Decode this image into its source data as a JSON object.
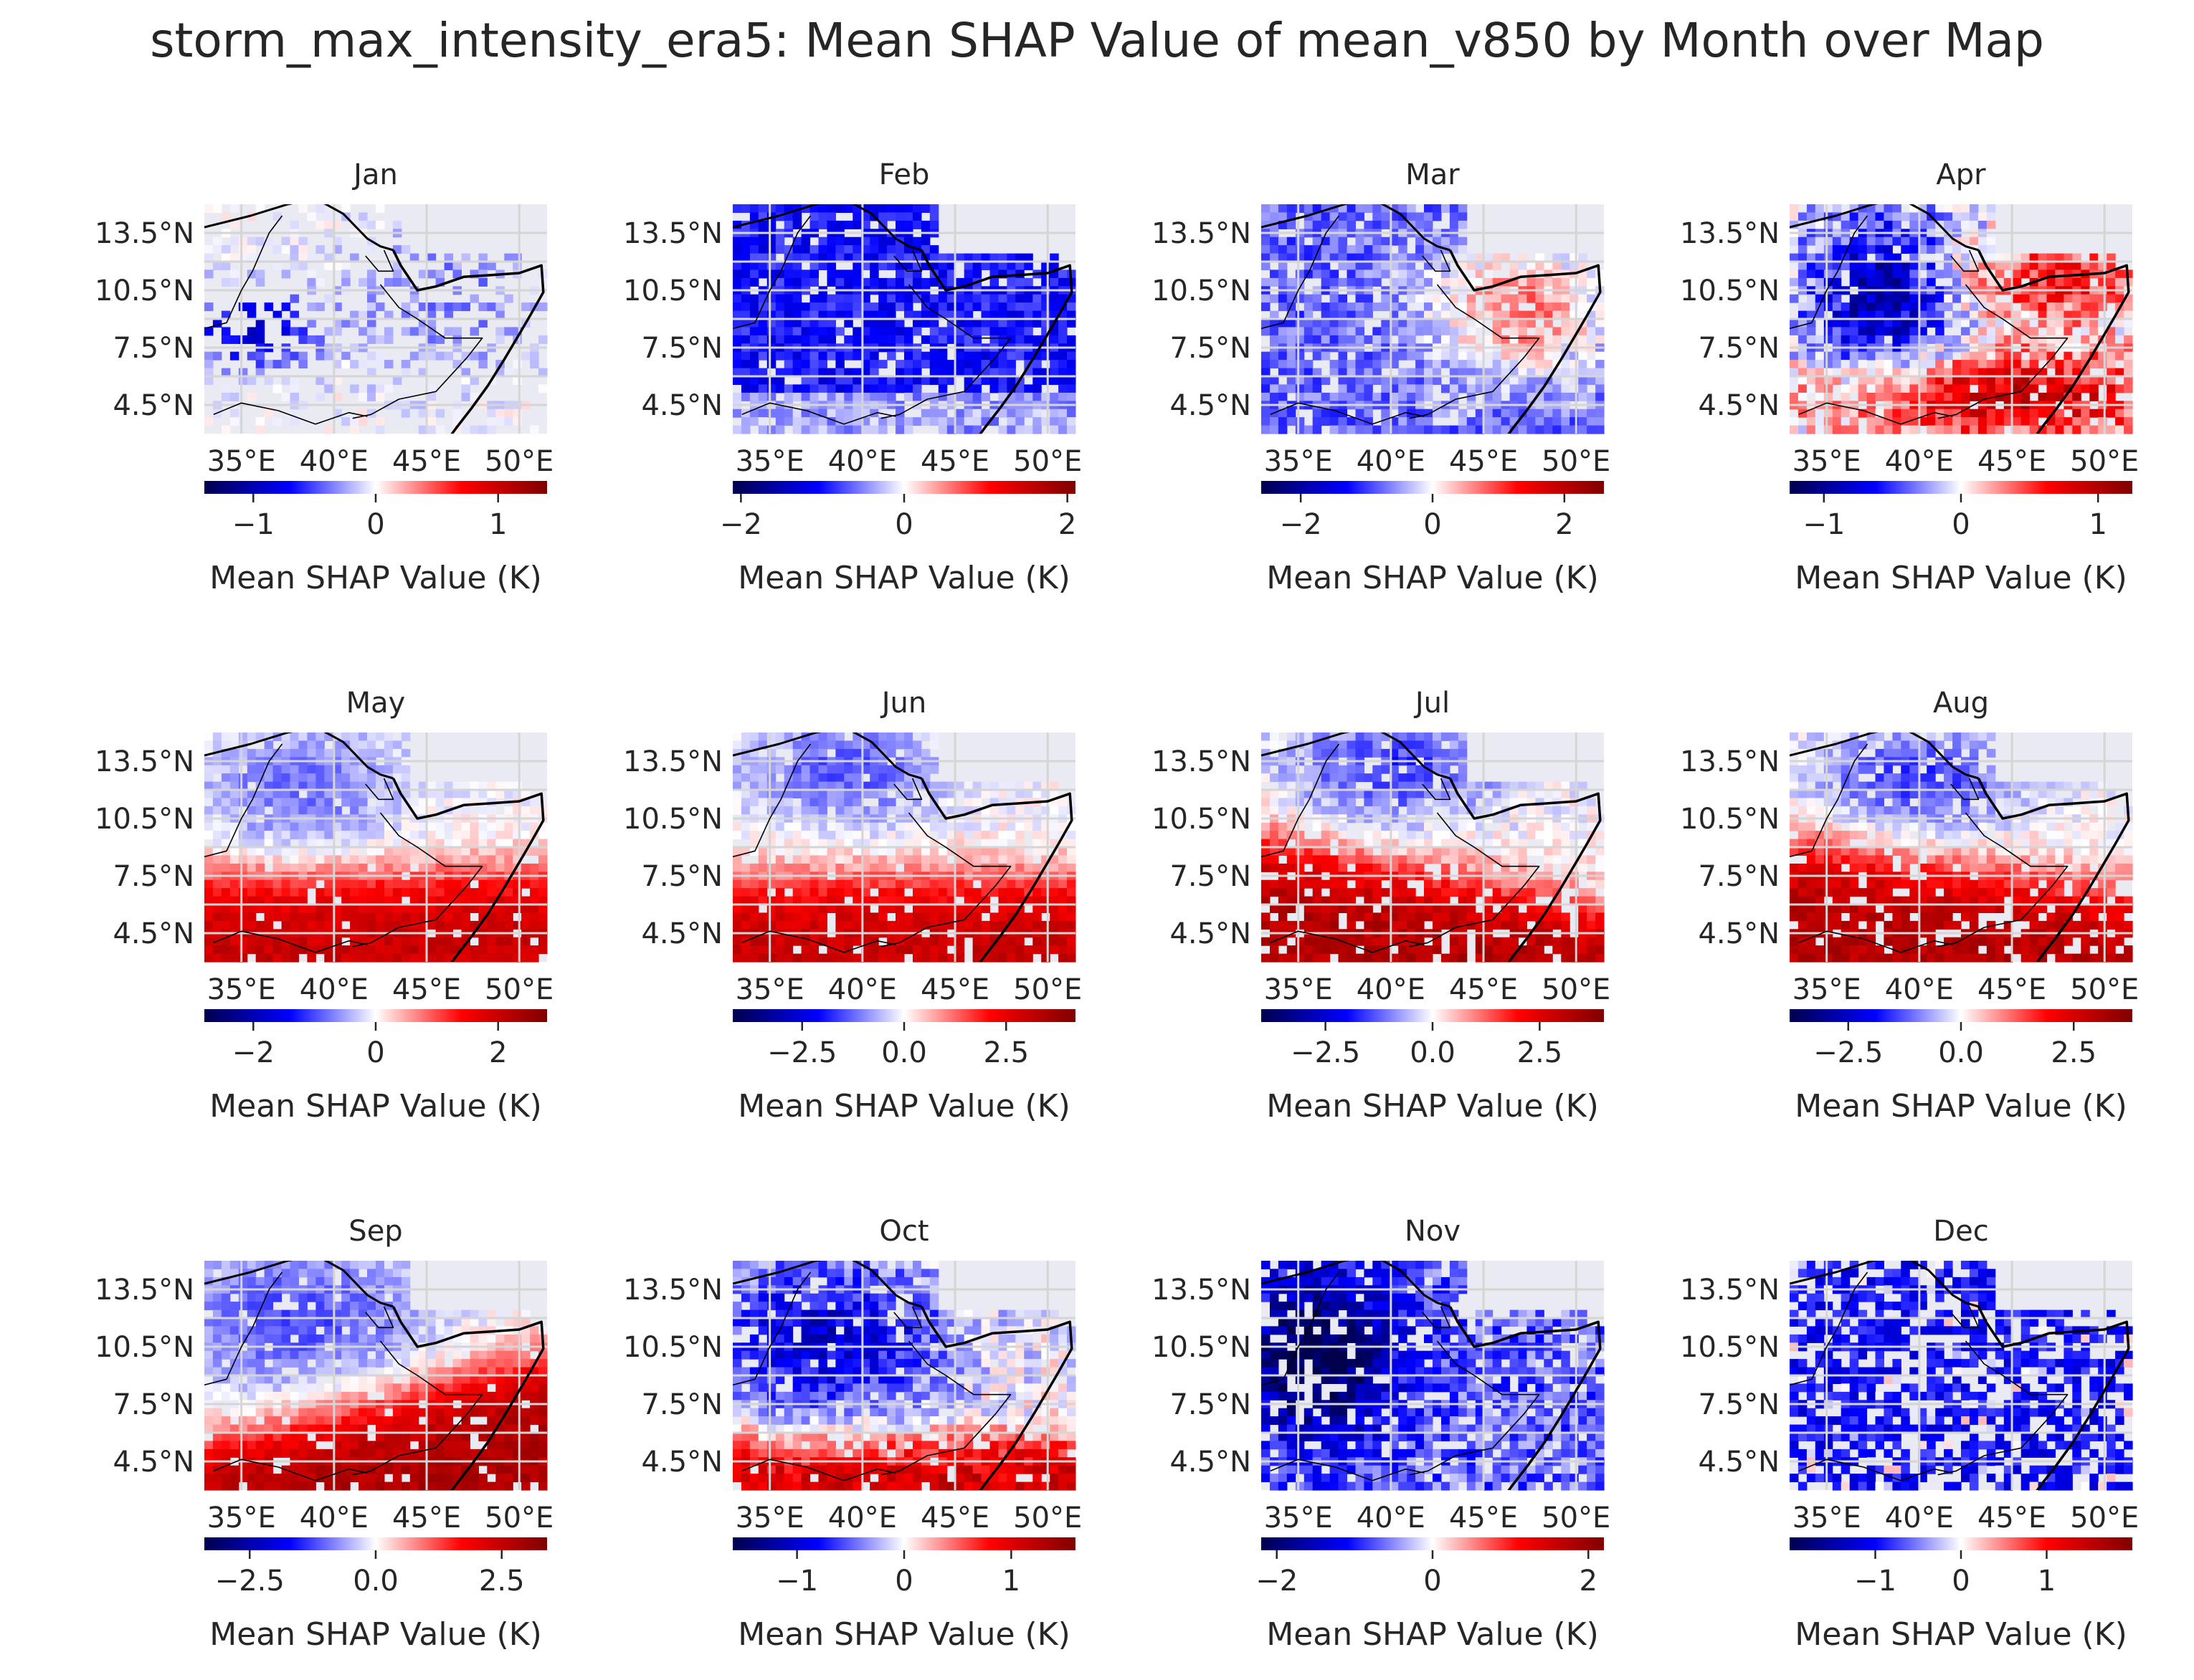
{
  "title": "storm_max_intensity_era5: Mean SHAP Value of mean_v850 by Month over Map",
  "chart_data": {
    "type": "heatmap",
    "colormap": "seismic",
    "background_color": "#eaeaf2",
    "grid": true,
    "lat_ticks": [
      "13.5°N",
      "10.5°N",
      "7.5°N",
      "4.5°N"
    ],
    "lat_tick_values": [
      13.5,
      10.5,
      7.5,
      4.5
    ],
    "lon_ticks": [
      "35°E",
      "40°E",
      "45°E",
      "50°E"
    ],
    "lon_tick_values": [
      35,
      40,
      45,
      50
    ],
    "lon_range": [
      33,
      51.5
    ],
    "lat_range": [
      3,
      15
    ],
    "colorbar_label": "Mean SHAP Value (K)",
    "panels": [
      {
        "month": "Jan",
        "vrange": 1.4,
        "cbar_ticks": [
          {
            "v": -1,
            "label": "−1"
          },
          {
            "v": 0,
            "label": "0"
          },
          {
            "v": 1,
            "label": "1"
          }
        ],
        "pattern": "jan"
      },
      {
        "month": "Feb",
        "vrange": 2.1,
        "cbar_ticks": [
          {
            "v": -2,
            "label": "−2"
          },
          {
            "v": 0,
            "label": "0"
          },
          {
            "v": 2,
            "label": "2"
          }
        ],
        "pattern": "feb"
      },
      {
        "month": "Mar",
        "vrange": 2.6,
        "cbar_ticks": [
          {
            "v": -2,
            "label": "−2"
          },
          {
            "v": 0,
            "label": "0"
          },
          {
            "v": 2,
            "label": "2"
          }
        ],
        "pattern": "mar"
      },
      {
        "month": "Apr",
        "vrange": 1.25,
        "cbar_ticks": [
          {
            "v": -1,
            "label": "−1"
          },
          {
            "v": 0,
            "label": "0"
          },
          {
            "v": 1,
            "label": "1"
          }
        ],
        "pattern": "apr"
      },
      {
        "month": "May",
        "vrange": 2.8,
        "cbar_ticks": [
          {
            "v": -2,
            "label": "−2"
          },
          {
            "v": 0,
            "label": "0"
          },
          {
            "v": 2,
            "label": "2"
          }
        ],
        "pattern": "may"
      },
      {
        "month": "Jun",
        "vrange": 4.2,
        "cbar_ticks": [
          {
            "v": -2.5,
            "label": "−2.5"
          },
          {
            "v": 0,
            "label": "0.0"
          },
          {
            "v": 2.5,
            "label": "2.5"
          }
        ],
        "pattern": "jun"
      },
      {
        "month": "Jul",
        "vrange": 4.0,
        "cbar_ticks": [
          {
            "v": -2.5,
            "label": "−2.5"
          },
          {
            "v": 0,
            "label": "0.0"
          },
          {
            "v": 2.5,
            "label": "2.5"
          }
        ],
        "pattern": "jul"
      },
      {
        "month": "Aug",
        "vrange": 3.8,
        "cbar_ticks": [
          {
            "v": -2.5,
            "label": "−2.5"
          },
          {
            "v": 0,
            "label": "0.0"
          },
          {
            "v": 2.5,
            "label": "2.5"
          }
        ],
        "pattern": "aug"
      },
      {
        "month": "Sep",
        "vrange": 3.4,
        "cbar_ticks": [
          {
            "v": -2.5,
            "label": "−2.5"
          },
          {
            "v": 0,
            "label": "0.0"
          },
          {
            "v": 2.5,
            "label": "2.5"
          }
        ],
        "pattern": "sep"
      },
      {
        "month": "Oct",
        "vrange": 1.6,
        "cbar_ticks": [
          {
            "v": -1,
            "label": "−1"
          },
          {
            "v": 0,
            "label": "0"
          },
          {
            "v": 1,
            "label": "1"
          }
        ],
        "pattern": "oct"
      },
      {
        "month": "Nov",
        "vrange": 2.2,
        "cbar_ticks": [
          {
            "v": -2,
            "label": "−2"
          },
          {
            "v": 0,
            "label": "0"
          },
          {
            "v": 2,
            "label": "2"
          }
        ],
        "pattern": "nov"
      },
      {
        "month": "Dec",
        "vrange": 2.0,
        "cbar_ticks": [
          {
            "v": -1,
            "label": "−1"
          },
          {
            "v": 0,
            "label": "0"
          },
          {
            "v": 1,
            "label": "1"
          }
        ],
        "pattern": "dec"
      }
    ]
  }
}
